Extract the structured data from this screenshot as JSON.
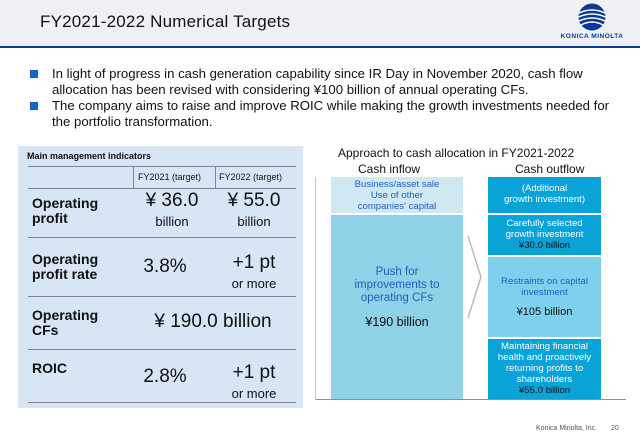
{
  "header": {
    "title": "FY2021-2022 Numerical Targets",
    "logo_text": "KONICA MINOLTA",
    "accent": "#0a3d91"
  },
  "bullets": [
    "In light of progress in cash generation capability since IR Day in November 2020, cash flow allocation has been revised with considering ¥100 billion of annual operating CFs.",
    "The company aims to raise and improve ROIC while making the growth investments needed for the portfolio transformation."
  ],
  "table": {
    "caption": "Main management indicators",
    "col_fy2021": "FY2021 (target)",
    "col_fy2022": "FY2022 (target)",
    "rows": [
      {
        "label_l1": "Operating",
        "label_l2": "profit",
        "fy2021_value": "¥ 36.0",
        "fy2021_unit": "billion",
        "fy2022_value": "¥ 55.0",
        "fy2022_unit": "billion"
      },
      {
        "label_l1": "Operating",
        "label_l2": "profit rate",
        "fy2021_value": "3.8%",
        "fy2022_value": "+1 pt",
        "fy2022_unit": "or more"
      },
      {
        "label_l1": "Operating",
        "label_l2": "CFs",
        "merged_value": "¥ 190.0 billion"
      },
      {
        "label_l1": "ROIC",
        "fy2021_value": "2.8%",
        "fy2022_value": "+1 pt",
        "fy2022_unit": "or more"
      }
    ]
  },
  "diagram": {
    "title": "Approach to cash allocation in FY2021-2022",
    "inflow_head": "Cash inflow",
    "outflow_head": "Cash outflow",
    "inflow_top": [
      "Business/asset sale",
      "Use of other",
      "companies' capital"
    ],
    "inflow_main": [
      "Push for",
      "improvements to",
      "operating CFs"
    ],
    "inflow_amount": "¥190 billion",
    "out1": [
      "(Additional",
      "growth investment)"
    ],
    "out2": [
      "Carefully selected",
      "growth investment"
    ],
    "out2_amount": "¥30.0 billion",
    "out3": [
      "Restraints on capital",
      "investment"
    ],
    "out3_amount": "¥105 billion",
    "out4": [
      "Maintaining financial",
      "health and proactively",
      "returning profits to",
      "shareholders"
    ],
    "out4_amount": "¥55.0 billion"
  },
  "footer": {
    "company": "Konica Minolta, Inc.",
    "page": "20"
  }
}
